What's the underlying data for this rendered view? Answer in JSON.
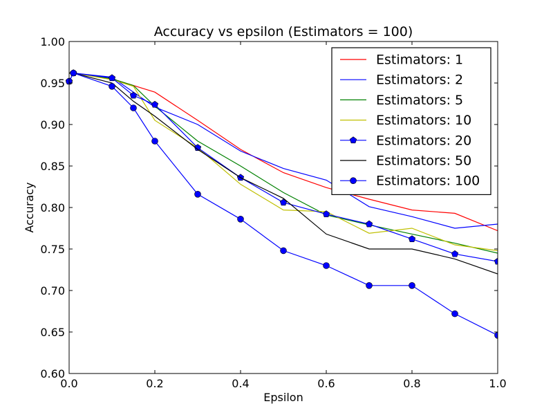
{
  "chart_data": {
    "type": "line",
    "title": "Accuracy vs epsilon (Estimators = 100)",
    "xlabel": "Epsilon",
    "ylabel": "Accuracy",
    "xlim": [
      0.0,
      1.0
    ],
    "ylim": [
      0.6,
      1.0
    ],
    "xticks": [
      "0.0",
      "0.2",
      "0.4",
      "0.6",
      "0.8",
      "1.0"
    ],
    "yticks": [
      "0.60",
      "0.65",
      "0.70",
      "0.75",
      "0.80",
      "0.85",
      "0.90",
      "0.95",
      "1.00"
    ],
    "grid": false,
    "legend_position": "top-right",
    "x": [
      0.0,
      0.01,
      0.1,
      0.15,
      0.2,
      0.3,
      0.4,
      0.5,
      0.6,
      0.7,
      0.8,
      0.9,
      1.0
    ],
    "series": [
      {
        "name": "Estimators: 1",
        "color": "#ff0000",
        "marker": "none",
        "values": [
          0.962,
          0.962,
          0.955,
          0.947,
          0.939,
          0.905,
          0.87,
          0.842,
          0.824,
          0.81,
          0.797,
          0.793,
          0.772
        ]
      },
      {
        "name": "Estimators: 2",
        "color": "#0000ff",
        "marker": "none",
        "values": [
          0.962,
          0.962,
          0.957,
          0.939,
          0.921,
          0.9,
          0.868,
          0.847,
          0.833,
          0.801,
          0.789,
          0.775,
          0.78
        ]
      },
      {
        "name": "Estimators: 5",
        "color": "#008000",
        "marker": "none",
        "values": [
          0.962,
          0.962,
          0.955,
          0.947,
          0.922,
          0.88,
          0.85,
          0.818,
          0.791,
          0.779,
          0.768,
          0.757,
          0.745
        ]
      },
      {
        "name": "Estimators: 10",
        "color": "#bfbf00",
        "marker": "none",
        "values": [
          0.962,
          0.962,
          0.954,
          0.946,
          0.905,
          0.872,
          0.828,
          0.797,
          0.795,
          0.769,
          0.775,
          0.755,
          0.748
        ]
      },
      {
        "name": "Estimators: 20",
        "color": "#0000ff",
        "marker": "pentagon",
        "values": [
          0.952,
          0.962,
          0.956,
          0.935,
          0.924,
          0.872,
          0.836,
          0.806,
          0.792,
          0.78,
          0.762,
          0.744,
          0.735
        ]
      },
      {
        "name": "Estimators: 50",
        "color": "#000000",
        "marker": "none",
        "values": [
          0.962,
          0.962,
          0.95,
          0.928,
          0.91,
          0.87,
          0.836,
          0.811,
          0.768,
          0.75,
          0.75,
          0.738,
          0.72
        ]
      },
      {
        "name": "Estimators: 100",
        "color": "#0000ff",
        "marker": "circle",
        "values": [
          0.952,
          0.962,
          0.946,
          0.92,
          0.88,
          0.816,
          0.786,
          0.748,
          0.73,
          0.706,
          0.706,
          0.672,
          0.646
        ]
      }
    ]
  }
}
